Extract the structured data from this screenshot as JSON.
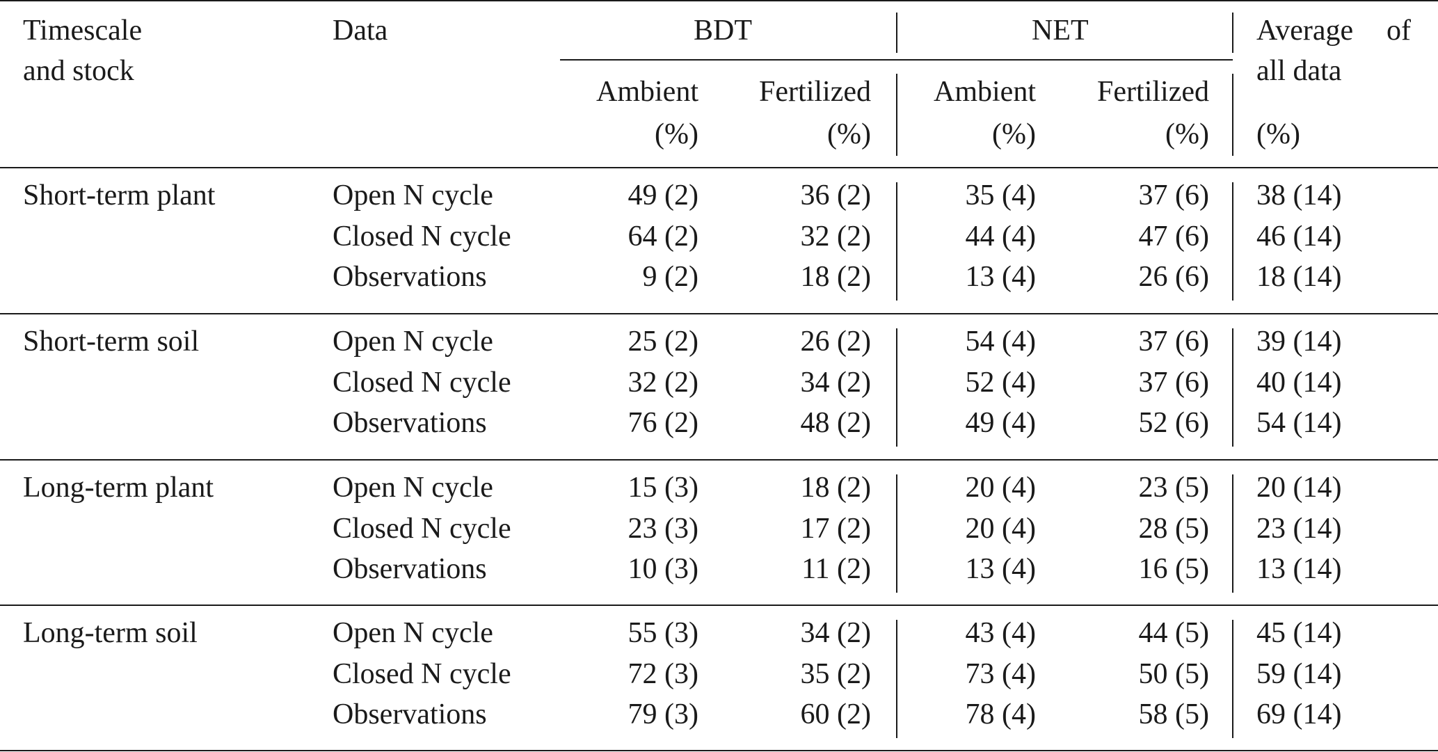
{
  "header": {
    "col_timescale": [
      "Timescale",
      "and stock"
    ],
    "col_data": "Data",
    "group_bdt": "BDT",
    "group_net": "NET",
    "col_average": [
      "Average",
      "of",
      "all data"
    ],
    "sub_ambient": "Ambient",
    "sub_fertilized": "Fertilized",
    "unit": "(%)"
  },
  "groups": [
    {
      "stock": "Short-term plant",
      "rows": [
        {
          "data": "Open N cycle",
          "bdt_ambient": "49 (2)",
          "bdt_fertilized": "36 (2)",
          "net_ambient": "35 (4)",
          "net_fertilized": "37 (6)",
          "average": "38 (14)"
        },
        {
          "data": "Closed N cycle",
          "bdt_ambient": "64 (2)",
          "bdt_fertilized": "32 (2)",
          "net_ambient": "44 (4)",
          "net_fertilized": "47 (6)",
          "average": "46 (14)"
        },
        {
          "data": "Observations",
          "bdt_ambient": "9 (2)",
          "bdt_fertilized": "18 (2)",
          "net_ambient": "13 (4)",
          "net_fertilized": "26 (6)",
          "average": "18 (14)"
        }
      ]
    },
    {
      "stock": "Short-term soil",
      "rows": [
        {
          "data": "Open N cycle",
          "bdt_ambient": "25 (2)",
          "bdt_fertilized": "26 (2)",
          "net_ambient": "54 (4)",
          "net_fertilized": "37 (6)",
          "average": "39 (14)"
        },
        {
          "data": "Closed N cycle",
          "bdt_ambient": "32 (2)",
          "bdt_fertilized": "34 (2)",
          "net_ambient": "52 (4)",
          "net_fertilized": "37 (6)",
          "average": "40 (14)"
        },
        {
          "data": "Observations",
          "bdt_ambient": "76 (2)",
          "bdt_fertilized": "48 (2)",
          "net_ambient": "49 (4)",
          "net_fertilized": "52 (6)",
          "average": "54 (14)"
        }
      ]
    },
    {
      "stock": "Long-term plant",
      "rows": [
        {
          "data": "Open N cycle",
          "bdt_ambient": "15 (3)",
          "bdt_fertilized": "18 (2)",
          "net_ambient": "20 (4)",
          "net_fertilized": "23 (5)",
          "average": "20 (14)"
        },
        {
          "data": "Closed N cycle",
          "bdt_ambient": "23 (3)",
          "bdt_fertilized": "17 (2)",
          "net_ambient": "20 (4)",
          "net_fertilized": "28 (5)",
          "average": "23 (14)"
        },
        {
          "data": "Observations",
          "bdt_ambient": "10 (3)",
          "bdt_fertilized": "11 (2)",
          "net_ambient": "13 (4)",
          "net_fertilized": "16 (5)",
          "average": "13 (14)"
        }
      ]
    },
    {
      "stock": "Long-term soil",
      "rows": [
        {
          "data": "Open N cycle",
          "bdt_ambient": "55 (3)",
          "bdt_fertilized": "34 (2)",
          "net_ambient": "43 (4)",
          "net_fertilized": "44 (5)",
          "average": "45 (14)"
        },
        {
          "data": "Closed N cycle",
          "bdt_ambient": "72 (3)",
          "bdt_fertilized": "35 (2)",
          "net_ambient": "73 (4)",
          "net_fertilized": "50 (5)",
          "average": "59 (14)"
        },
        {
          "data": "Observations",
          "bdt_ambient": "79 (3)",
          "bdt_fertilized": "60 (2)",
          "net_ambient": "78 (4)",
          "net_fertilized": "58 (5)",
          "average": "69 (14)"
        }
      ]
    }
  ]
}
